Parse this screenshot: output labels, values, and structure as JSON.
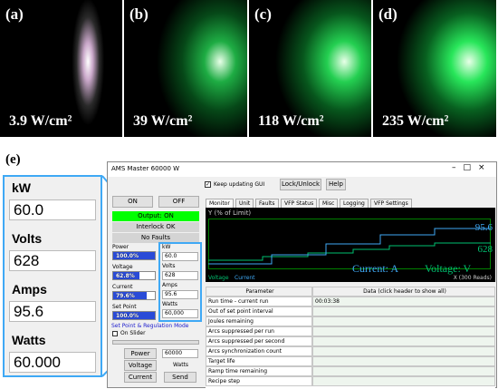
{
  "panels": [
    {
      "label": "(a)",
      "caption": "3.9 W/cm²"
    },
    {
      "label": "(b)",
      "caption": "39 W/cm²"
    },
    {
      "label": "(c)",
      "caption": "118 W/cm²"
    },
    {
      "label": "(d)",
      "caption": "235 W/cm²"
    }
  ],
  "figure_label": "(e)",
  "zoom": [
    {
      "label": "kW",
      "value": "60.0"
    },
    {
      "label": "Volts",
      "value": "628"
    },
    {
      "label": "Amps",
      "value": "95.6"
    },
    {
      "label": "Watts",
      "value": "60.000"
    }
  ],
  "window": {
    "title": "AMS Master 60000 W",
    "keep_updating": "Keep updating GUI",
    "lock": "Lock/Unlock",
    "help": "Help",
    "on": "ON",
    "off": "OFF",
    "output": "Output: ON",
    "interlock": "Interlock OK",
    "faults": "No Faults",
    "meters": [
      {
        "label": "Power",
        "value": "100.0%"
      },
      {
        "label": "Voltage",
        "value": "62.8%"
      },
      {
        "label": "Current",
        "value": "79.6%"
      },
      {
        "label": "Set Point",
        "value": "100.0%"
      }
    ],
    "readouts": [
      {
        "label": "kW",
        "value": "60.0"
      },
      {
        "label": "Volts",
        "value": "628"
      },
      {
        "label": "Amps",
        "value": "95.6"
      },
      {
        "label": "Watts",
        "value": "60,000"
      }
    ],
    "mode_title": "Set Point & Regulation Mode",
    "slider": "On Slider",
    "setpoint": "60000",
    "mode_buttons": {
      "power": "Power",
      "voltage": "Voltage",
      "watts": "Watts",
      "current": "Current",
      "send": "Send"
    },
    "tabs": [
      "Monitor",
      "Unit",
      "Faults",
      "VFP Status",
      "Misc",
      "Logging",
      "VFP Settings"
    ],
    "plot": {
      "y_title": "Y (% of Limit)",
      "value1": "95.6",
      "value2": "628",
      "current_label": "Current: A",
      "voltage_label": "Voltage: V",
      "legend": [
        "Voltage",
        "Current"
      ],
      "x_title": "X (300 Reads)"
    },
    "table": {
      "header": [
        "Parameter",
        "Data (click header to show all)"
      ],
      "rows": [
        {
          "parameter": "Run time - current run",
          "data": "00:03:38"
        },
        {
          "parameter": "Out of set point interval"
        },
        {
          "parameter": "Joules remaining"
        },
        {
          "parameter": "Arcs suppressed per run"
        },
        {
          "parameter": "Arcs suppressed per second"
        },
        {
          "parameter": "Arcs synchronization count"
        },
        {
          "parameter": "Target life"
        },
        {
          "parameter": "Ramp time remaining"
        },
        {
          "parameter": "Recipe step"
        }
      ]
    }
  }
}
